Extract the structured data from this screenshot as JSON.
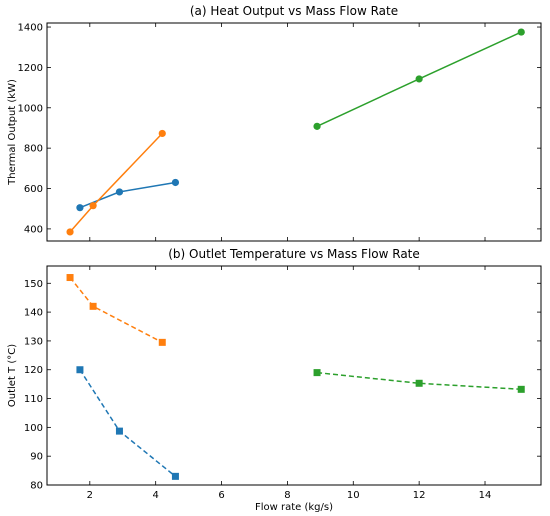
{
  "chart_data": [
    {
      "type": "line",
      "title": "(a) Heat Output vs Mass Flow Rate",
      "xlabel": "",
      "ylabel": "Thermal Output (kW)",
      "xlim": [
        0.7,
        15.7
      ],
      "ylim": [
        340,
        1420
      ],
      "xticks": [
        2,
        4,
        6,
        8,
        10,
        12,
        14
      ],
      "xtick_labels_shown": false,
      "yticks": [
        400,
        600,
        800,
        1000,
        1200,
        1400
      ],
      "grid": false,
      "marker": "circle",
      "linestyle": "solid",
      "series": [
        {
          "color": "#1f77b4",
          "x": [
            1.7,
            2.9,
            4.6
          ],
          "y": [
            505,
            583,
            630
          ]
        },
        {
          "color": "#ff7f0e",
          "x": [
            1.4,
            2.1,
            4.2
          ],
          "y": [
            385,
            515,
            873
          ]
        },
        {
          "color": "#2ca02c",
          "x": [
            8.9,
            12.0,
            15.1
          ],
          "y": [
            908,
            1143,
            1375
          ]
        }
      ]
    },
    {
      "type": "line",
      "title": "(b) Outlet Temperature vs Mass Flow Rate",
      "xlabel": "Flow rate (kg/s)",
      "ylabel": "Outlet T (°C)",
      "xlim": [
        0.7,
        15.7
      ],
      "ylim": [
        80,
        156
      ],
      "xticks": [
        2,
        4,
        6,
        8,
        10,
        12,
        14
      ],
      "xtick_labels_shown": true,
      "yticks": [
        80,
        90,
        100,
        110,
        120,
        130,
        140,
        150
      ],
      "grid": false,
      "marker": "square",
      "linestyle": "dashed",
      "series": [
        {
          "color": "#1f77b4",
          "x": [
            1.7,
            2.9,
            4.6
          ],
          "y": [
            120,
            98.7,
            83
          ]
        },
        {
          "color": "#ff7f0e",
          "x": [
            1.4,
            2.1,
            4.2
          ],
          "y": [
            152,
            142,
            129.5
          ]
        },
        {
          "color": "#2ca02c",
          "x": [
            8.9,
            12.0,
            15.1
          ],
          "y": [
            119,
            115.3,
            113.2
          ]
        }
      ]
    }
  ]
}
